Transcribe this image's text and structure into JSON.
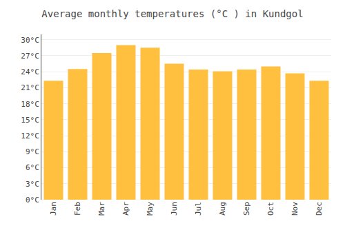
{
  "chart_data": {
    "type": "bar",
    "title": "Average monthly temperatures (°C ) in Kundgol",
    "categories": [
      "Jan",
      "Feb",
      "Mar",
      "Apr",
      "May",
      "Jun",
      "Jul",
      "Aug",
      "Sep",
      "Oct",
      "Nov",
      "Dec"
    ],
    "values": [
      22.3,
      24.5,
      27.5,
      29.0,
      28.5,
      25.5,
      24.4,
      24.1,
      24.4,
      25.0,
      23.7,
      22.3
    ],
    "color": "#FFC040",
    "ylim": [
      0,
      31
    ],
    "yticks": [
      {
        "value": 0,
        "label": "0°C"
      },
      {
        "value": 3,
        "label": "3°C"
      },
      {
        "value": 6,
        "label": "6°C"
      },
      {
        "value": 9,
        "label": "9°C"
      },
      {
        "value": 12,
        "label": "12°C"
      },
      {
        "value": 15,
        "label": "15°C"
      },
      {
        "value": 18,
        "label": "18°C"
      },
      {
        "value": 21,
        "label": "21°C"
      },
      {
        "value": 24,
        "label": "24°C"
      },
      {
        "value": 27,
        "label": "27°C"
      },
      {
        "value": 30,
        "label": "30°C"
      }
    ],
    "grid": true
  }
}
